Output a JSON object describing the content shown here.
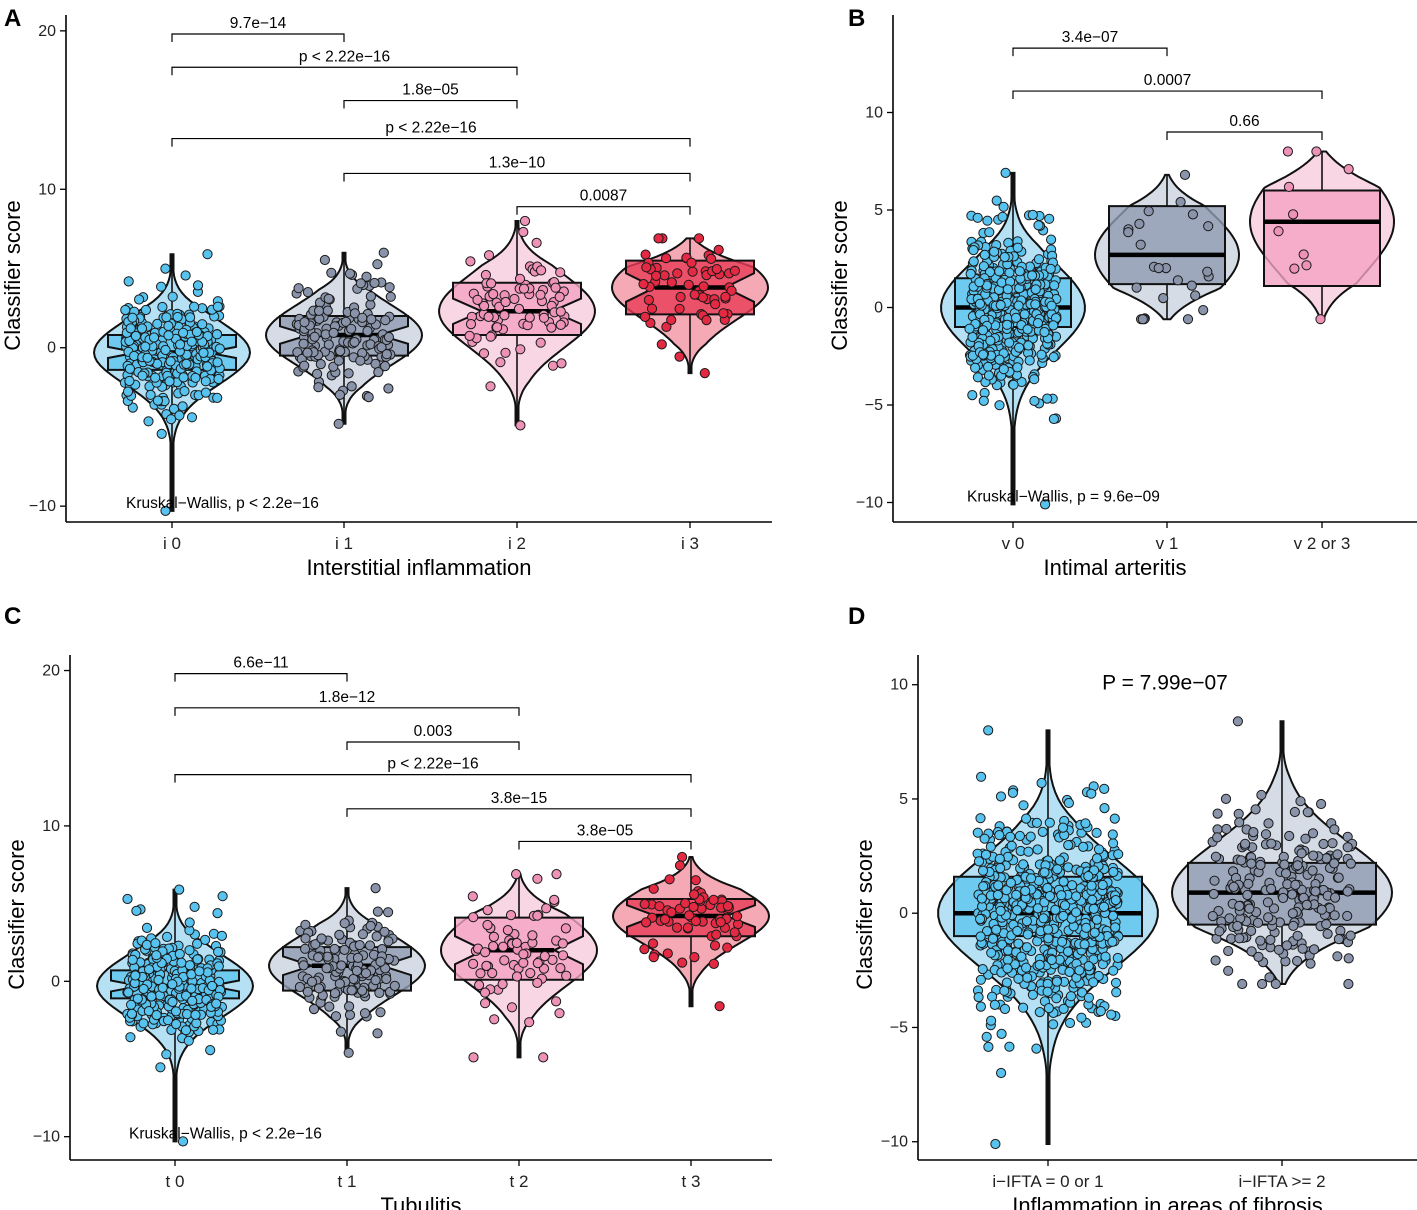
{
  "palette": {
    "blue": "#5ec4ee",
    "blue_violin": "#a9dcf2",
    "gray": "#8e9bb1",
    "gray_violin": "#cfd6e0",
    "pink": "#f4a3c3",
    "pink_violin": "#f8cfdf",
    "red": "#ea3b58",
    "red_violin": "#f29aa8",
    "point_blue": "#59c3ef",
    "point_gray": "#8994aa",
    "point_pink": "#ee93b7",
    "point_red": "#e42943"
  },
  "chart_data": [
    {
      "panel": "A",
      "type": "violin-box-strip",
      "xlabel": "Interstitial inflammation",
      "ylabel": "Classifier score",
      "ylim": [
        -11,
        21
      ],
      "yticks": [
        -10,
        0,
        10,
        20
      ],
      "ytick_labels": [
        "−10",
        "0",
        "10",
        "20"
      ],
      "categories": [
        "i 0",
        "i 1",
        "i 2",
        "i 3"
      ],
      "colors": [
        "blue",
        "gray",
        "pink",
        "red"
      ],
      "notched": true,
      "groups": [
        {
          "min": -10.3,
          "q1": -1.4,
          "median": -0.3,
          "q3": 0.8,
          "max": 5.9,
          "notch_half": 0.35,
          "n": 300,
          "spread": 2.0
        },
        {
          "min": -4.8,
          "q1": -0.5,
          "median": 0.8,
          "q3": 2.0,
          "max": 6.0,
          "notch_half": 0.55,
          "n": 150,
          "spread": 1.9
        },
        {
          "min": -4.9,
          "q1": 0.8,
          "median": 2.3,
          "q3": 4.1,
          "max": 8.0,
          "notch_half": 0.8,
          "n": 80,
          "spread": 2.3
        },
        {
          "min": -1.6,
          "q1": 2.1,
          "median": 3.8,
          "q3": 5.5,
          "max": 6.9,
          "notch_half": 0.9,
          "n": 60,
          "spread": 2.0
        }
      ],
      "comparisons": [
        {
          "pair": [
            0,
            1
          ],
          "label": "9.7e−14",
          "y": 19.8
        },
        {
          "pair": [
            0,
            2
          ],
          "label": "p < 2.22e−16",
          "y": 17.7
        },
        {
          "pair": [
            1,
            2
          ],
          "label": "1.8e−05",
          "y": 15.6
        },
        {
          "pair": [
            0,
            3
          ],
          "label": "p < 2.22e−16",
          "y": 13.2
        },
        {
          "pair": [
            1,
            3
          ],
          "label": "1.3e−10",
          "y": 11.0
        },
        {
          "pair": [
            2,
            3
          ],
          "label": "0.0087",
          "y": 8.9
        }
      ],
      "test_label": "Kruskal−Wallis, p < 2.2e−16",
      "test_label_y": -9.8
    },
    {
      "panel": "B",
      "type": "violin-box-strip",
      "xlabel": "Intimal arteritis",
      "ylabel": "Classifier score",
      "ylim": [
        -11,
        15
      ],
      "yticks": [
        -10,
        -5,
        0,
        5,
        10
      ],
      "ytick_labels": [
        "−10",
        "−5",
        "0",
        "5",
        "10"
      ],
      "categories": [
        "v 0",
        "v 1",
        "v 2 or 3"
      ],
      "colors": [
        "blue",
        "gray",
        "pink"
      ],
      "notched": false,
      "groups": [
        {
          "min": -10.1,
          "q1": -1.0,
          "median": 0.0,
          "q3": 1.5,
          "max": 6.9,
          "notch_half": 0,
          "n": 450,
          "spread": 2.2
        },
        {
          "min": -0.6,
          "q1": 1.2,
          "median": 2.7,
          "q3": 5.2,
          "max": 6.8,
          "notch_half": 0,
          "n": 25,
          "spread": 2.2
        },
        {
          "min": -0.6,
          "q1": 1.1,
          "median": 4.4,
          "q3": 6.0,
          "max": 8.0,
          "notch_half": 0,
          "n": 10,
          "spread": 2.6
        }
      ],
      "comparisons": [
        {
          "pair": [
            0,
            1
          ],
          "label": "3.4e−07",
          "y": 13.3
        },
        {
          "pair": [
            0,
            2
          ],
          "label": "0.0007",
          "y": 11.1
        },
        {
          "pair": [
            1,
            2
          ],
          "label": "0.66",
          "y": 9.0
        }
      ],
      "test_label": "Kruskal−Wallis, p = 9.6e−09",
      "test_label_y": -9.7
    },
    {
      "panel": "C",
      "type": "violin-box-strip",
      "xlabel": "Tubulitis",
      "ylabel": "Classifier score",
      "ylim": [
        -11.5,
        21
      ],
      "yticks": [
        -10,
        0,
        10,
        20
      ],
      "ytick_labels": [
        "−10",
        "0",
        "10",
        "20"
      ],
      "categories": [
        "t 0",
        "t 1",
        "t 2",
        "t 3"
      ],
      "colors": [
        "blue",
        "gray",
        "pink",
        "red"
      ],
      "notched": true,
      "groups": [
        {
          "min": -10.3,
          "q1": -1.1,
          "median": -0.3,
          "q3": 0.7,
          "max": 5.9,
          "notch_half": 0.35,
          "n": 280,
          "spread": 2.0
        },
        {
          "min": -4.6,
          "q1": -0.6,
          "median": 1.0,
          "q3": 2.2,
          "max": 6.0,
          "notch_half": 0.6,
          "n": 140,
          "spread": 1.9
        },
        {
          "min": -4.9,
          "q1": 0.1,
          "median": 2.0,
          "q3": 4.1,
          "max": 6.9,
          "notch_half": 0.9,
          "n": 70,
          "spread": 2.3
        },
        {
          "min": -1.6,
          "q1": 2.9,
          "median": 4.2,
          "q3": 5.3,
          "max": 8.0,
          "notch_half": 0.7,
          "n": 65,
          "spread": 1.8
        }
      ],
      "comparisons": [
        {
          "pair": [
            0,
            1
          ],
          "label": "6.6e−11",
          "y": 19.8
        },
        {
          "pair": [
            0,
            2
          ],
          "label": "1.8e−12",
          "y": 17.6
        },
        {
          "pair": [
            1,
            2
          ],
          "label": "0.003",
          "y": 15.4
        },
        {
          "pair": [
            0,
            3
          ],
          "label": "p < 2.22e−16",
          "y": 13.3
        },
        {
          "pair": [
            1,
            3
          ],
          "label": "3.8e−15",
          "y": 11.1
        },
        {
          "pair": [
            2,
            3
          ],
          "label": "3.8e−05",
          "y": 9.0
        }
      ],
      "test_label": "Kruskal−Wallis, p < 2.2e−16",
      "test_label_y": -9.8
    },
    {
      "panel": "D",
      "type": "violin-box-strip",
      "xlabel": "Inflammation in areas of fibrosis",
      "ylabel": "Classifier score",
      "ylim": [
        -10.8,
        11.3
      ],
      "yticks": [
        -10,
        -5,
        0,
        5,
        10
      ],
      "ytick_labels": [
        "−10",
        "−5",
        "0",
        "5",
        "10"
      ],
      "categories": [
        "i−IFTA = 0 or 1",
        "i−IFTA >= 2"
      ],
      "colors": [
        "blue",
        "gray"
      ],
      "notched": false,
      "groups": [
        {
          "min": -10.1,
          "q1": -1.0,
          "median": 0.0,
          "q3": 1.6,
          "max": 8.0,
          "notch_half": 0,
          "n": 650,
          "spread": 2.4
        },
        {
          "min": -3.1,
          "q1": -0.5,
          "median": 0.9,
          "q3": 2.2,
          "max": 8.4,
          "notch_half": 0,
          "n": 230,
          "spread": 2.2
        }
      ],
      "comparisons": [],
      "test_label": "P = 7.99e−07",
      "test_label_y": 10.0
    }
  ]
}
